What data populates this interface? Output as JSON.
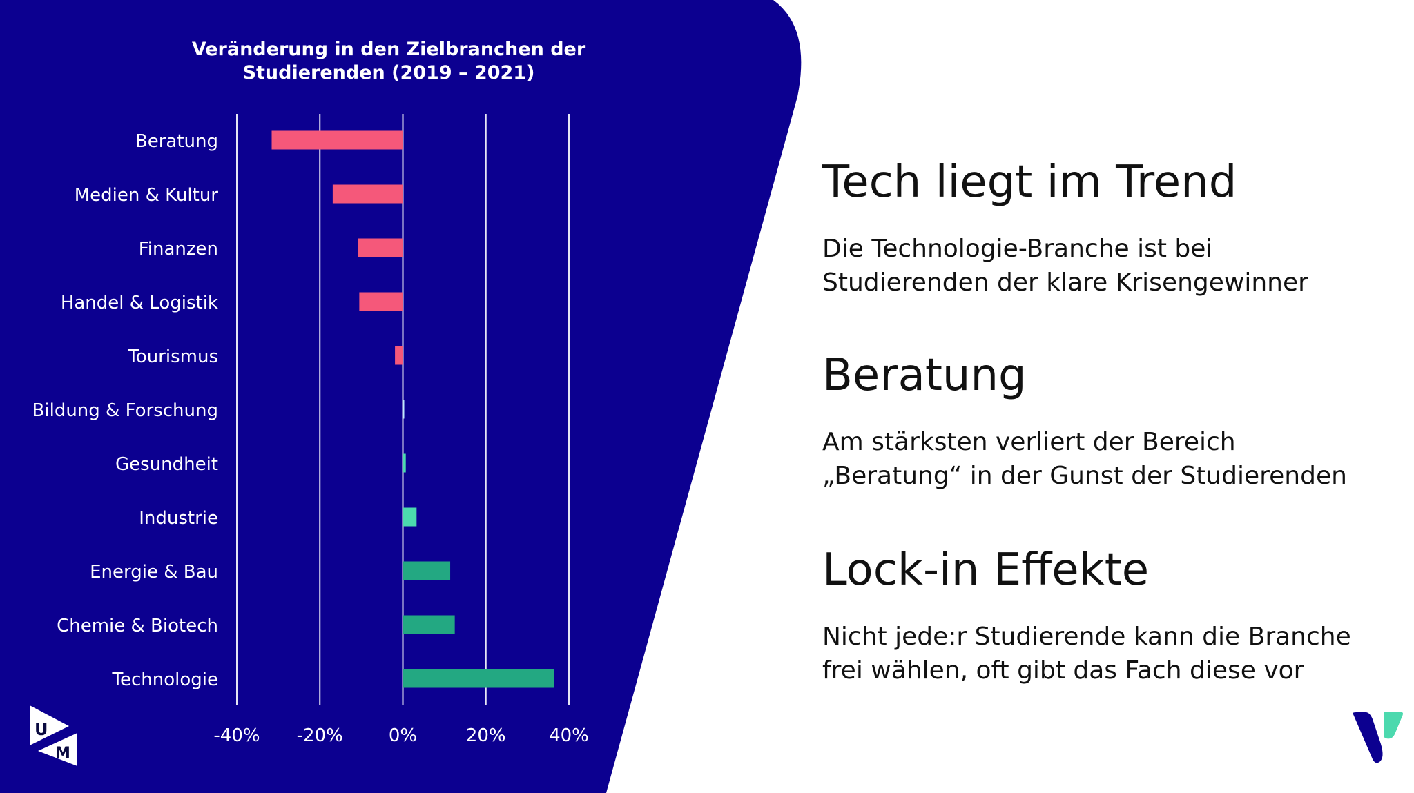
{
  "colors": {
    "background_panel": "#0c0090",
    "negative": "#f5587a",
    "positive_small": "#4cd9ae",
    "positive": "#23a882",
    "neutral": "#bfe9ff",
    "grid": "#e6e6f5",
    "text_light": "#ffffff"
  },
  "chart_data": {
    "type": "bar",
    "orientation": "horizontal",
    "title": "Veränderung in den Zielbranchen der Studierenden (2019 – 2021)",
    "title_lines": [
      "Veränderung in den Zielbranchen der",
      "Studierenden (2019 – 2021)"
    ],
    "categories": [
      "Beratung",
      "Medien & Kultur",
      "Finanzen",
      "Handel & Logistik",
      "Tourismus",
      "Bildung & Forschung",
      "Gesundheit",
      "Industrie",
      "Energie & Bau",
      "Chemie & Biotech",
      "Technologie"
    ],
    "values": [
      -31.6,
      -16.9,
      -10.8,
      -10.5,
      -1.9,
      0.3,
      0.7,
      3.3,
      11.4,
      12.5,
      36.4
    ],
    "unit": "%",
    "xlim": [
      -40,
      40
    ],
    "xticks": [
      -40,
      -20,
      0,
      20,
      40
    ],
    "xtick_labels": [
      "-40%",
      "-20%",
      "0%",
      "20%",
      "40%"
    ],
    "grid": true,
    "xlabel": "",
    "ylabel": ""
  },
  "sections": [
    {
      "heading": "Tech liegt im Trend",
      "body_lines": [
        "Die Technologie-Branche ist bei",
        "Studierenden der klare Krisengewinner"
      ]
    },
    {
      "heading": "Beratung",
      "body_lines": [
        "Am stärksten verliert der Bereich",
        "„Beratung“ in der Gunst der Studierenden"
      ]
    },
    {
      "heading": "Lock-in Effekte",
      "body_lines": [
        "Nicht jede:r Studierende kann die Branche",
        "frei wählen, oft gibt das Fach diese vor"
      ]
    }
  ],
  "logos": {
    "left": "U M",
    "right": "V"
  }
}
